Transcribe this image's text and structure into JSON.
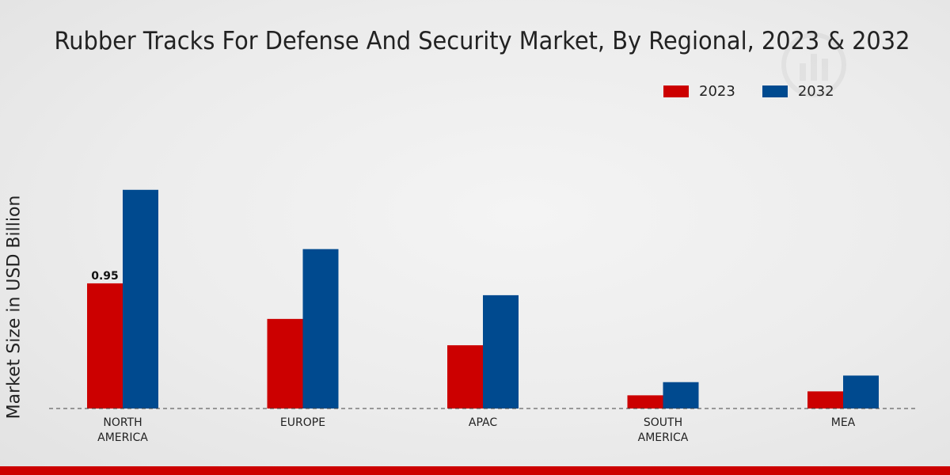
{
  "chart_data": {
    "type": "bar",
    "title": "Rubber Tracks For Defense And Security Market, By Regional, 2023 & 2032",
    "xlabel": "",
    "ylabel": "Market Size in USD Billion",
    "categories": [
      "NORTH\nAMERICA",
      "EUROPE",
      "APAC",
      "SOUTH\nAMERICA",
      "MEA"
    ],
    "series": [
      {
        "name": "2023",
        "color": "#cc0000",
        "values": [
          0.95,
          0.68,
          0.48,
          0.1,
          0.13
        ]
      },
      {
        "name": "2032",
        "color": "#004a8f",
        "values": [
          1.66,
          1.21,
          0.86,
          0.2,
          0.25
        ]
      }
    ],
    "data_labels": [
      {
        "series": "2023",
        "category_index": 0,
        "text": "0.95"
      }
    ],
    "ylim": [
      0,
      2.5
    ],
    "grid": false,
    "legend_position": "top-right"
  },
  "colors": {
    "brand_red": "#cc0000",
    "brand_blue": "#004a8f"
  },
  "watermark_icon": "bar-chart-logo-icon"
}
